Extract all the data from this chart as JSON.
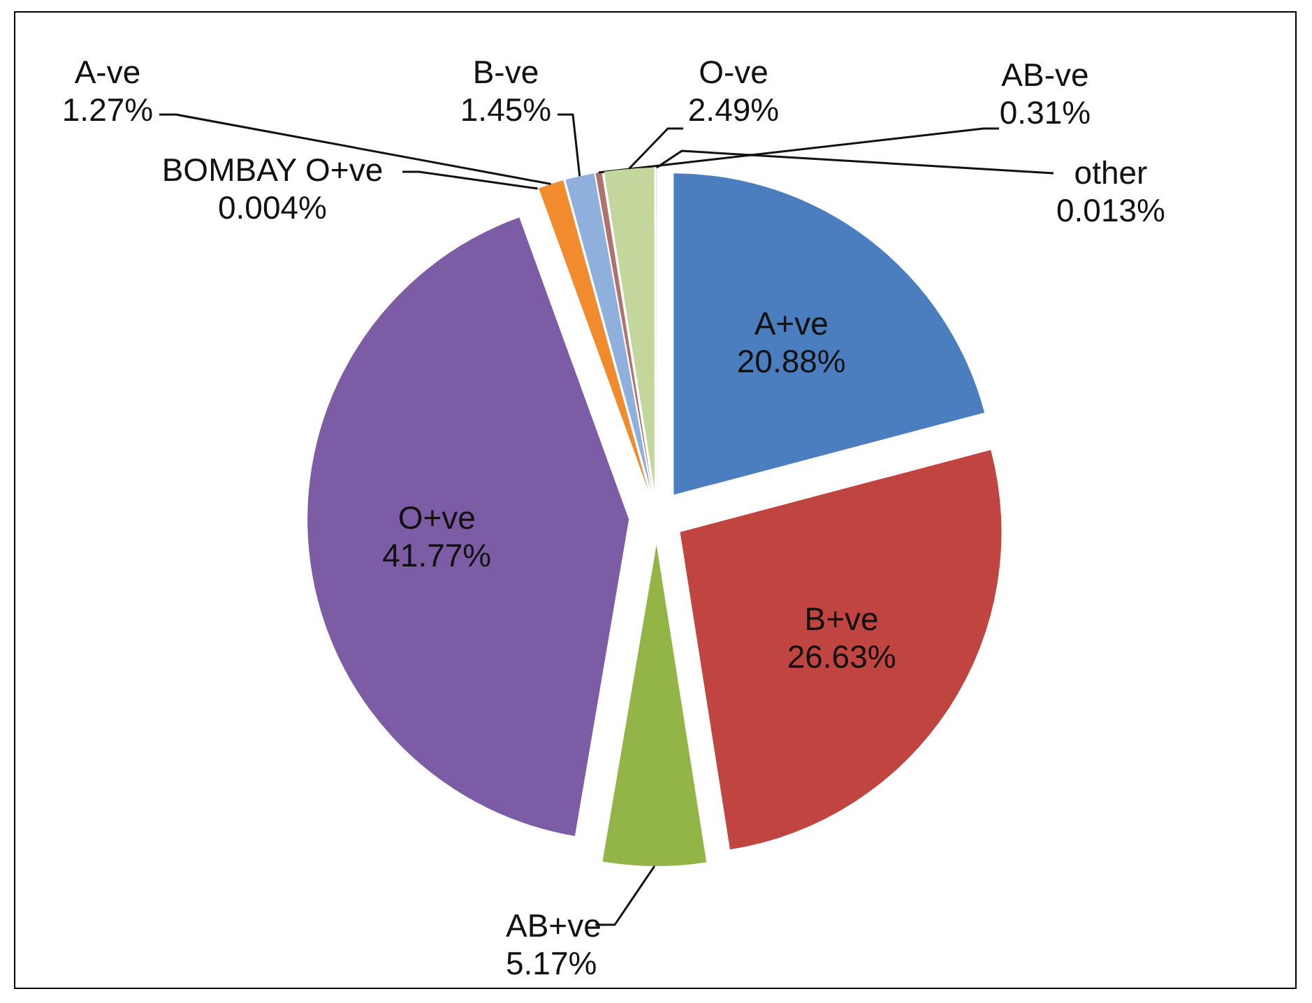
{
  "chart_data": {
    "type": "pie",
    "categories": [
      "A+ve",
      "B+ve",
      "AB+ve",
      "O+ve",
      "BOMBAY O+ve",
      "A-ve",
      "B-ve",
      "AB-ve",
      "O-ve",
      "other"
    ],
    "values": [
      20.88,
      26.63,
      5.17,
      41.77,
      0.004,
      1.27,
      1.45,
      0.31,
      2.49,
      0.013
    ],
    "value_labels": [
      "20.88%",
      "26.63%",
      "5.17%",
      "41.77%",
      "0.004%",
      "1.27%",
      "1.45%",
      "0.31%",
      "2.49%",
      "0.013%"
    ],
    "colors": [
      "#4a7ebf",
      "#c0443f",
      "#93b548",
      "#7d5ca6",
      "#4bacc6",
      "#f28a2e",
      "#8fb0dc",
      "#b0726f",
      "#c3d69b",
      "#b3a2c7"
    ]
  }
}
